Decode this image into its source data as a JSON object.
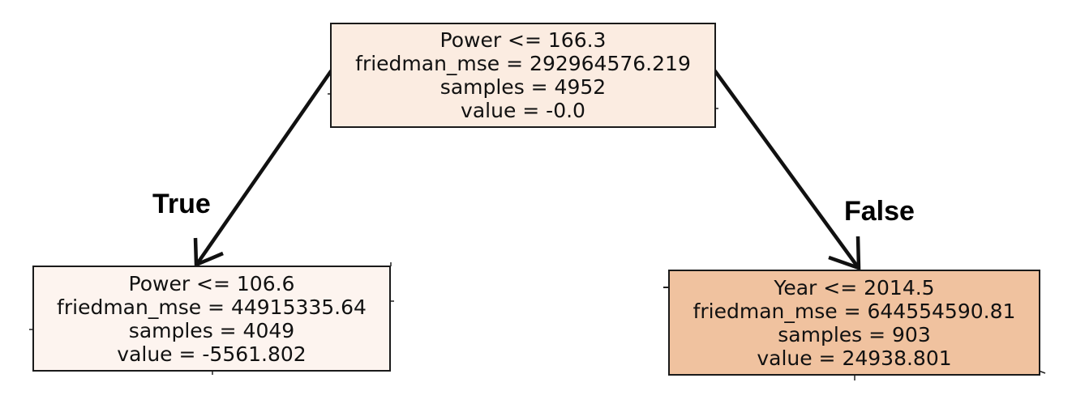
{
  "tree": {
    "root": {
      "condition": "Power <= 166.3",
      "mse": "friedman_mse = 292964576.219",
      "samples": "samples = 4952",
      "value": "value = -0.0",
      "fill": "#fbece1"
    },
    "left": {
      "condition": "Power <= 106.6",
      "mse": "friedman_mse = 44915335.64",
      "samples": "samples = 4049",
      "value": "value = -5561.802",
      "fill": "#fdf4ef"
    },
    "right": {
      "condition": "Year <= 2014.5",
      "mse": "friedman_mse = 644554590.81",
      "samples": "samples = 903",
      "value": "value = 24938.801",
      "fill": "#f0c29f"
    },
    "edges": {
      "true_label": "True",
      "false_label": "False",
      "color": "#111111"
    }
  }
}
